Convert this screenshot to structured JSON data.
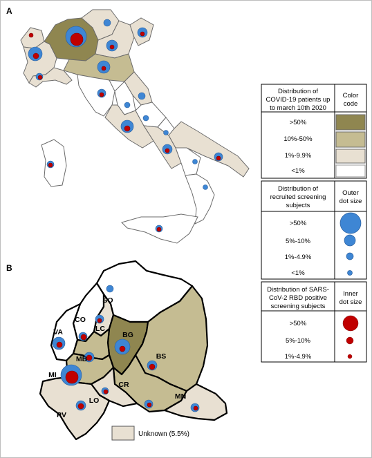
{
  "panels": {
    "a_label": "A",
    "b_label": "B"
  },
  "colors": {
    "over50": "#8f8650",
    "p10_50": "#c5bc92",
    "p1_9": "#e8e0d2",
    "under1": "#ffffff",
    "outer_dot": "#3e86d4",
    "inner_dot": "#c00000"
  },
  "legend_color": {
    "header": [
      "Distribution of",
      "COVID-19 patients up",
      "to march 10th 2020"
    ],
    "column": [
      "Color",
      "code"
    ],
    "rows": [
      ">50%",
      "10%-50%",
      "1%-9.9%",
      "<1%"
    ]
  },
  "legend_outer": {
    "header": [
      "Distribution of",
      "recruited screening",
      "subjects"
    ],
    "column": [
      "Outer",
      "dot size"
    ],
    "rows": [
      ">50%",
      "5%-10%",
      "1%-4.9%",
      "<1%"
    ]
  },
  "legend_inner": {
    "header": [
      "Distribution of SARS-",
      "CoV-2 RBD positive",
      "screening subjects"
    ],
    "column": [
      "Inner",
      "dot size"
    ],
    "rows": [
      ">50%",
      "5%-10%",
      "1%-4.9%"
    ]
  },
  "provinces": [
    "SO",
    "CO",
    "LC",
    "VA",
    "BG",
    "MB",
    "BS",
    "MI",
    "CR",
    "LO",
    "MN",
    "PV"
  ],
  "unknown_label": "Unknown (5.5%)"
}
